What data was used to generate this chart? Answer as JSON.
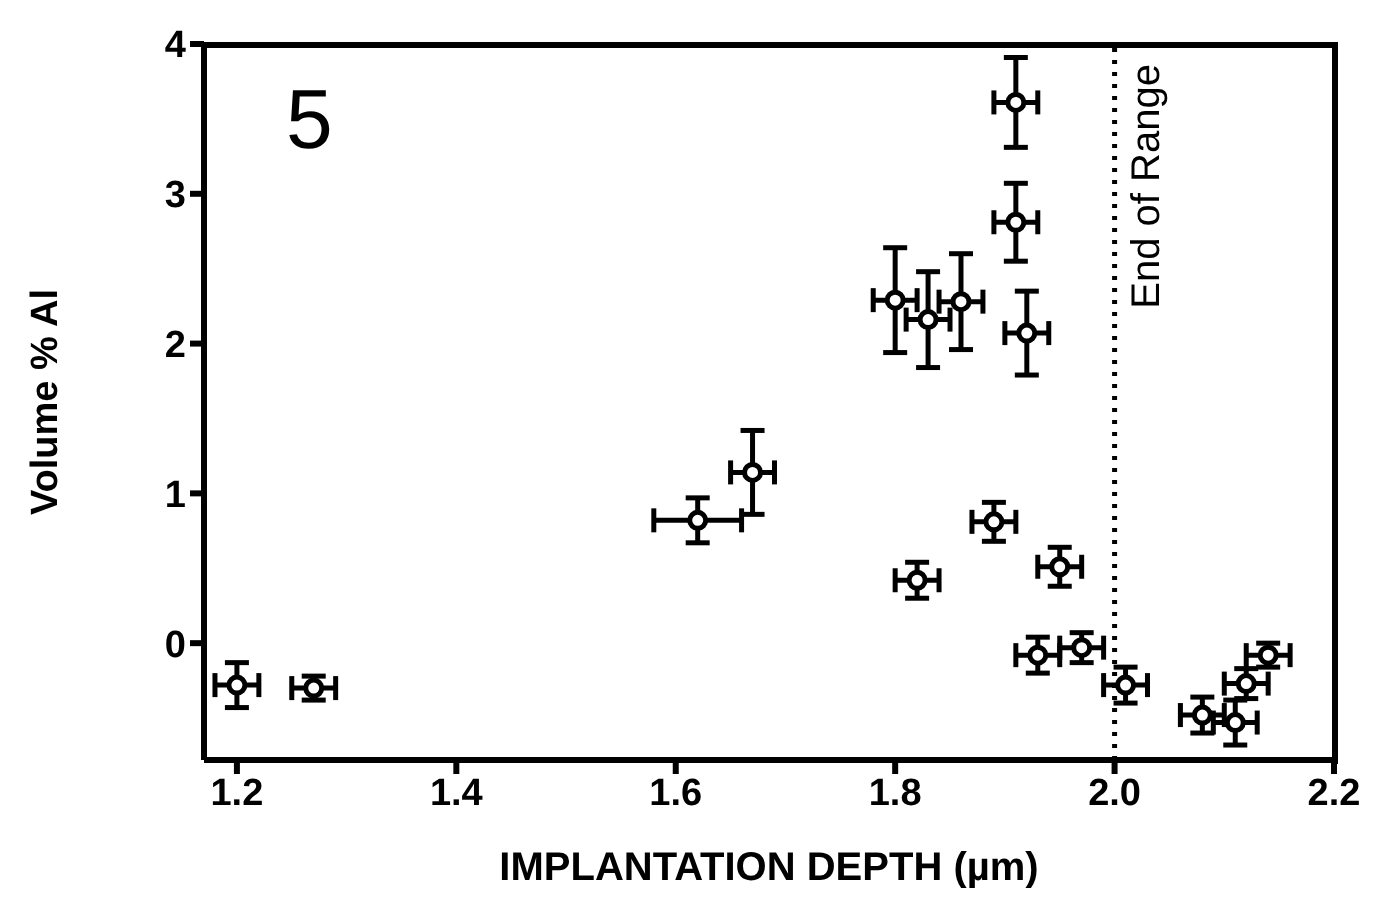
{
  "chart_data": {
    "type": "scatter",
    "xlabel": "IMPLANTATION DEPTH (µm)",
    "ylabel": "Volume % Al",
    "annotations": [
      "5"
    ],
    "x": [
      1.2,
      1.27,
      1.62,
      1.67,
      1.8,
      1.83,
      1.86,
      1.91,
      1.91,
      1.92,
      1.82,
      1.89,
      1.95,
      1.93,
      1.97,
      2.01,
      2.08,
      2.11,
      2.12,
      2.14
    ],
    "series": [
      {
        "color": "#000000",
        "values": [
          -0.28,
          -0.3,
          0.82,
          1.14,
          2.29,
          2.16,
          2.28,
          3.61,
          2.81,
          2.07,
          0.42,
          0.81,
          0.51,
          -0.08,
          -0.03,
          -0.28,
          -0.48,
          -0.53,
          -0.27,
          -0.08
        ],
        "errors": [
          0.15,
          0.08,
          0.15,
          0.28,
          0.35,
          0.32,
          0.32,
          0.3,
          0.26,
          0.28,
          0.12,
          0.13,
          0.13,
          0.12,
          0.1,
          0.12,
          0.12,
          0.15,
          0.1,
          0.08
        ],
        "xerrors": [
          0.02,
          0.02,
          0.04,
          0.02,
          0.02,
          0.02,
          0.02,
          0.02,
          0.02,
          0.02,
          0.02,
          0.02,
          0.02,
          0.02,
          0.02,
          0.02,
          0.02,
          0.02,
          0.02,
          0.02
        ]
      }
    ],
    "xlim": [
      1.17,
      2.2
    ],
    "xticks": [
      {
        "value": 1.2,
        "label": "1.2"
      },
      {
        "value": 1.4,
        "label": "1.4"
      },
      {
        "value": 1.6,
        "label": "1.6"
      },
      {
        "value": 1.8,
        "label": "1.8"
      },
      {
        "value": 2.0,
        "label": "2.0"
      },
      {
        "value": 2.2,
        "label": "2.2"
      }
    ],
    "ylim": [
      -0.78,
      4
    ],
    "yticks": [
      0,
      1,
      2,
      3,
      4
    ],
    "ref_lines": [
      {
        "axis": "x",
        "value": 2.0,
        "label": "End of Range",
        "line_style": "dotted",
        "color": "#000000"
      }
    ],
    "marker": "circle"
  }
}
